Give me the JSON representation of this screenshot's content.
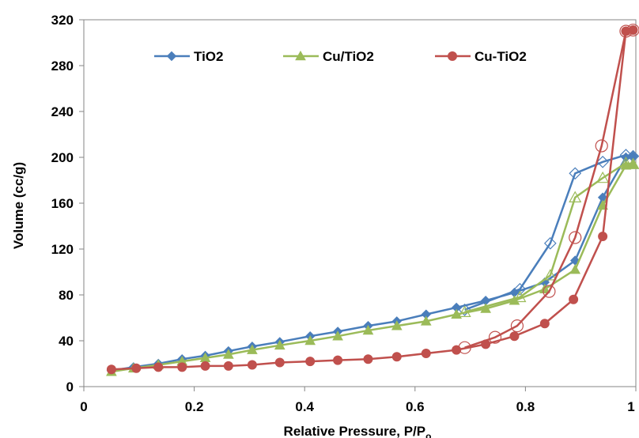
{
  "chart_data": {
    "type": "scatter",
    "title": "",
    "xlabel": "Relative Pressure, P/P",
    "xlabel_subscript": "o",
    "ylabel": "Volume (cc/g)",
    "xlim": [
      0,
      1
    ],
    "ylim": [
      0,
      320
    ],
    "xticks": [
      "0",
      "0.2",
      "0.4",
      "0.6",
      "0.8",
      "1"
    ],
    "yticks": [
      "0",
      "40",
      "80",
      "120",
      "160",
      "200",
      "240",
      "280",
      "320"
    ],
    "grid": false,
    "legend_position": "top",
    "series": [
      {
        "name": "TiO2",
        "color": "#4a7ebb",
        "marker": "diamond",
        "adsorption": {
          "x": [
            0.05,
            0.09,
            0.135,
            0.178,
            0.22,
            0.262,
            0.305,
            0.355,
            0.41,
            0.46,
            0.515,
            0.567,
            0.62,
            0.675,
            0.728,
            0.78,
            0.835,
            0.89,
            0.94,
            0.982,
            0.995
          ],
          "y": [
            14,
            17,
            20,
            24,
            27,
            31,
            35,
            39,
            44,
            48,
            53,
            57,
            63,
            69,
            75,
            82,
            91,
            110,
            165,
            200,
            201
          ]
        },
        "desorption": {
          "x": [
            0.995,
            0.982,
            0.94,
            0.89,
            0.845,
            0.79,
            0.69
          ],
          "y": [
            201,
            202,
            196,
            186,
            125,
            85,
            67
          ]
        }
      },
      {
        "name": "Cu/TiO2",
        "color": "#9bbb59",
        "marker": "triangle",
        "adsorption": {
          "x": [
            0.05,
            0.09,
            0.135,
            0.178,
            0.22,
            0.262,
            0.305,
            0.355,
            0.41,
            0.46,
            0.515,
            0.567,
            0.62,
            0.675,
            0.728,
            0.78,
            0.835,
            0.89,
            0.94,
            0.982,
            0.995
          ],
          "y": [
            13,
            16,
            19,
            22,
            25,
            28,
            32,
            36,
            40,
            44,
            49,
            53,
            57,
            63,
            68,
            75,
            85,
            102,
            158,
            193,
            194
          ]
        },
        "desorption": {
          "x": [
            0.995,
            0.982,
            0.94,
            0.89,
            0.845,
            0.79,
            0.69
          ],
          "y": [
            194,
            195,
            182,
            165,
            97,
            78,
            65
          ]
        }
      },
      {
        "name": "Cu-TiO2",
        "color": "#c0504d",
        "marker": "circle",
        "adsorption": {
          "x": [
            0.05,
            0.095,
            0.135,
            0.178,
            0.22,
            0.262,
            0.305,
            0.355,
            0.41,
            0.46,
            0.515,
            0.567,
            0.62,
            0.675,
            0.728,
            0.78,
            0.835,
            0.887,
            0.94,
            0.982,
            0.995
          ],
          "y": [
            15,
            16,
            17,
            17,
            18,
            18,
            19,
            21,
            22,
            23,
            24,
            26,
            29,
            32,
            37,
            44,
            55,
            76,
            131,
            310,
            311
          ]
        },
        "desorption": {
          "x": [
            0.995,
            0.982,
            0.938,
            0.89,
            0.843,
            0.785,
            0.745,
            0.69
          ],
          "y": [
            311,
            310,
            210,
            130,
            83,
            53,
            43,
            34
          ]
        }
      }
    ]
  }
}
